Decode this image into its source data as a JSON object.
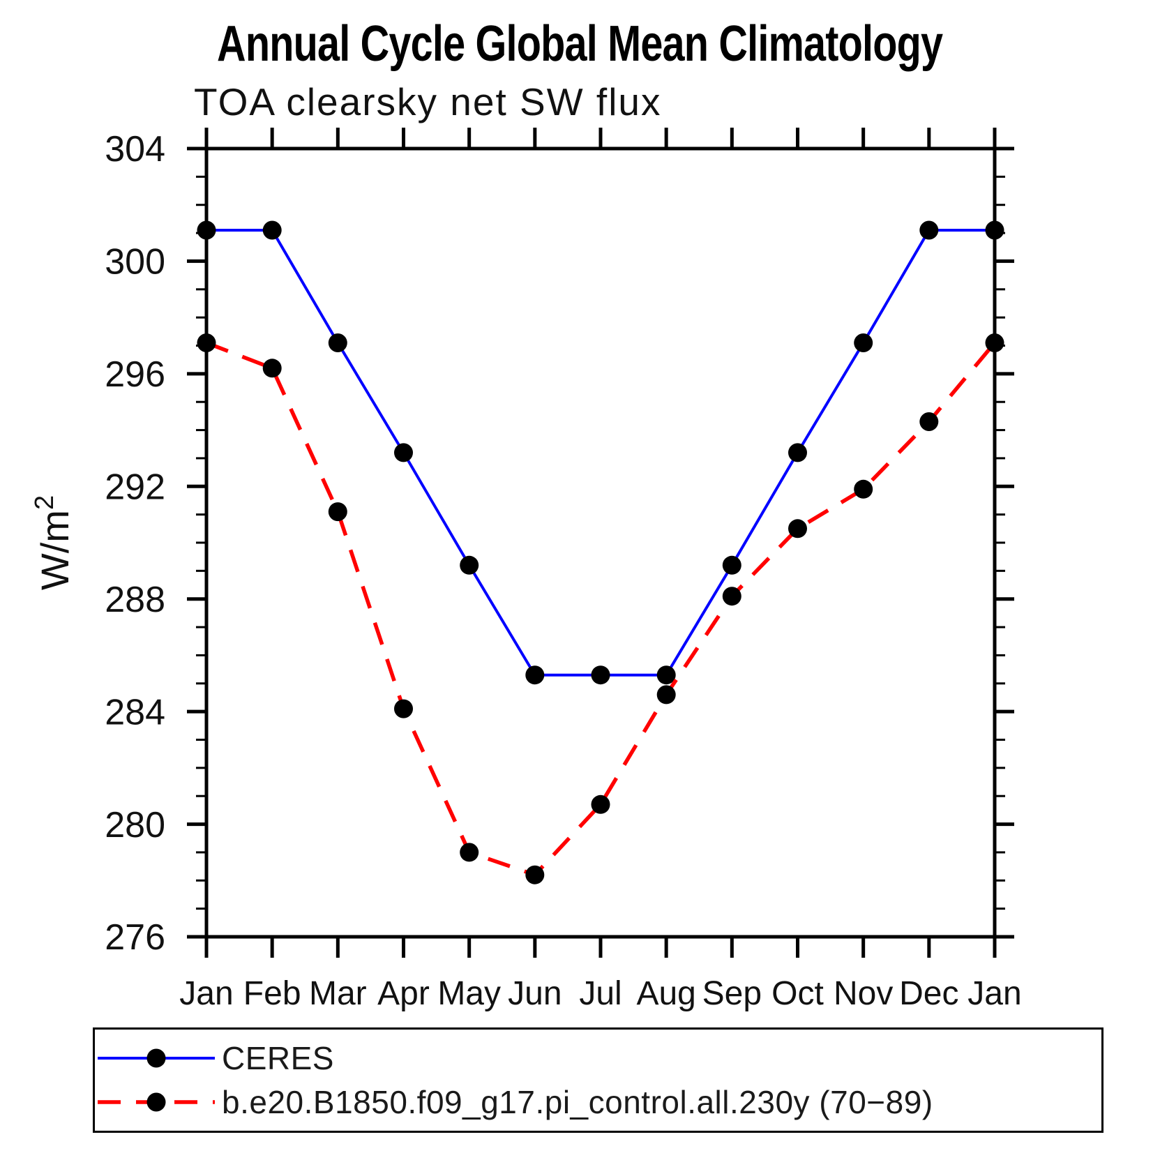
{
  "page": {
    "title": "Annual Cycle Global Mean Climatology",
    "subtitle": "TOA clearsky net SW flux"
  },
  "chart_data": {
    "type": "line",
    "title": "Annual Cycle Global Mean Climatology",
    "subtitle": "TOA clearsky net SW flux",
    "xlabel": "",
    "ylabel": "W/m²",
    "x_categories": [
      "Jan",
      "Feb",
      "Mar",
      "Apr",
      "May",
      "Jun",
      "Jul",
      "Aug",
      "Sep",
      "Oct",
      "Nov",
      "Dec",
      "Jan"
    ],
    "ylim": [
      276,
      304
    ],
    "ytick_major_step": 4,
    "ytick_minor_step": 1,
    "ytick_labels": [
      "276",
      "280",
      "284",
      "288",
      "292",
      "296",
      "300",
      "304"
    ],
    "grid": false,
    "legend_position": "bottom-box",
    "axis_color": "#000000",
    "series": [
      {
        "name": "CERES",
        "color": "#0000ff",
        "line_style": "solid",
        "marker": "circle",
        "marker_color": "#000000",
        "values": [
          301.1,
          301.1,
          297.1,
          293.2,
          289.2,
          285.3,
          285.3,
          285.3,
          289.2,
          293.2,
          297.1,
          301.1,
          301.1
        ]
      },
      {
        "name": "b.e20.B1850.f09_g17.pi_control.all.230y (70−89)",
        "color": "#ff0000",
        "line_style": "dashed",
        "marker": "circle",
        "marker_color": "#000000",
        "values": [
          297.1,
          296.2,
          291.1,
          284.1,
          279.0,
          278.2,
          280.7,
          284.6,
          288.1,
          290.5,
          291.9,
          294.3,
          297.1
        ]
      }
    ]
  }
}
